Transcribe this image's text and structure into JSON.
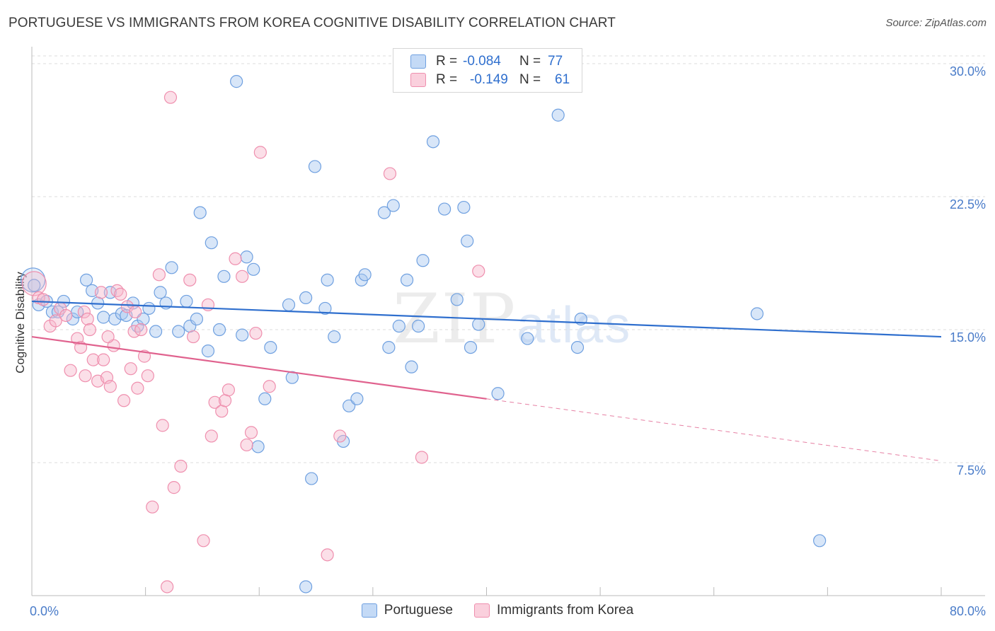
{
  "title": "PORTUGUESE VS IMMIGRANTS FROM KOREA COGNITIVE DISABILITY CORRELATION CHART",
  "source": "Source: ZipAtlas.com",
  "watermark": {
    "main": "ZIP",
    "sub": "atlas"
  },
  "legend": {
    "rows": [
      {
        "r_label": "R =",
        "r_value": "-0.084",
        "n_label": "N =",
        "n_value": "77",
        "color": "#a9c8f0"
      },
      {
        "r_label": "R =",
        "r_value": "-0.149",
        "n_label": "N =",
        "n_value": "61",
        "color": "#f6b8cb"
      }
    ]
  },
  "bottom_legend": [
    {
      "label": "Portuguese",
      "color": "#a9c8f0"
    },
    {
      "label": "Immigrants from Korea",
      "color": "#f6b8cb"
    }
  ],
  "chart_data": {
    "type": "scatter",
    "title": "PORTUGUESE VS IMMIGRANTS FROM KOREA COGNITIVE DISABILITY CORRELATION CHART",
    "xlabel": "",
    "ylabel": "Cognitive Disability",
    "xlim": [
      0,
      80
    ],
    "ylim": [
      0,
      30.8
    ],
    "x_tick_labels": [
      "0.0%",
      "80.0%"
    ],
    "y_ticks": [
      7.5,
      15.0,
      22.5,
      30.0
    ],
    "y_tick_labels": [
      "7.5%",
      "15.0%",
      "22.5%",
      "30.0%"
    ],
    "grid": true,
    "series": [
      {
        "name": "Portuguese",
        "color": "#6fa0e0",
        "trend": {
          "x0": 0,
          "y0": 16.6,
          "x1": 80,
          "y1": 14.6,
          "dashed_from": 80
        },
        "points": [
          [
            0.1,
            17.8
          ],
          [
            0.6,
            16.4
          ],
          [
            1.3,
            16.6
          ],
          [
            1.8,
            16.0
          ],
          [
            2.3,
            16.0
          ],
          [
            2.8,
            16.6
          ],
          [
            3.6,
            15.6
          ],
          [
            4.0,
            16.0
          ],
          [
            4.8,
            17.8
          ],
          [
            5.3,
            17.2
          ],
          [
            5.8,
            16.5
          ],
          [
            6.3,
            15.7
          ],
          [
            6.9,
            17.1
          ],
          [
            7.3,
            15.6
          ],
          [
            7.9,
            15.9
          ],
          [
            8.3,
            15.8
          ],
          [
            8.9,
            16.5
          ],
          [
            9.3,
            15.2
          ],
          [
            9.8,
            15.6
          ],
          [
            10.3,
            16.2
          ],
          [
            10.9,
            14.9
          ],
          [
            11.3,
            17.1
          ],
          [
            11.8,
            16.5
          ],
          [
            12.3,
            18.5
          ],
          [
            12.9,
            14.9
          ],
          [
            13.6,
            16.6
          ],
          [
            13.9,
            15.2
          ],
          [
            14.5,
            15.6
          ],
          [
            14.8,
            21.6
          ],
          [
            15.5,
            13.8
          ],
          [
            15.8,
            19.9
          ],
          [
            16.5,
            15.0
          ],
          [
            16.9,
            18.0
          ],
          [
            18.0,
            29.0
          ],
          [
            18.5,
            14.7
          ],
          [
            18.9,
            19.1
          ],
          [
            19.5,
            18.4
          ],
          [
            19.9,
            8.4
          ],
          [
            20.5,
            11.1
          ],
          [
            21.0,
            14.0
          ],
          [
            22.6,
            16.4
          ],
          [
            22.9,
            12.3
          ],
          [
            24.1,
            16.8
          ],
          [
            24.1,
            0.5
          ],
          [
            24.6,
            6.6
          ],
          [
            24.9,
            24.2
          ],
          [
            25.8,
            16.2
          ],
          [
            26.0,
            17.8
          ],
          [
            26.6,
            14.6
          ],
          [
            27.4,
            8.7
          ],
          [
            27.9,
            10.7
          ],
          [
            28.6,
            11.1
          ],
          [
            29.0,
            17.8
          ],
          [
            29.3,
            18.1
          ],
          [
            31.0,
            21.6
          ],
          [
            31.4,
            14.0
          ],
          [
            31.8,
            22.0
          ],
          [
            32.3,
            15.2
          ],
          [
            33.0,
            17.8
          ],
          [
            33.4,
            12.9
          ],
          [
            34.0,
            15.2
          ],
          [
            34.4,
            18.9
          ],
          [
            35.3,
            25.6
          ],
          [
            36.3,
            21.8
          ],
          [
            37.4,
            16.7
          ],
          [
            38.0,
            21.9
          ],
          [
            38.3,
            20.0
          ],
          [
            38.6,
            14.0
          ],
          [
            39.3,
            15.3
          ],
          [
            41.0,
            11.4
          ],
          [
            43.6,
            14.5
          ],
          [
            46.3,
            27.1
          ],
          [
            48.0,
            14.0
          ],
          [
            48.3,
            15.6
          ],
          [
            63.8,
            15.9
          ],
          [
            69.3,
            3.1
          ],
          [
            0.2,
            17.5
          ]
        ],
        "big_point_index": 0
      },
      {
        "name": "Immigrants from Korea",
        "color": "#ef8fae",
        "trend": {
          "x0": 0,
          "y0": 14.6,
          "x1": 80,
          "y1": 7.6,
          "dashed_from": 40
        },
        "points": [
          [
            0.2,
            17.6
          ],
          [
            0.6,
            16.8
          ],
          [
            1.0,
            16.7
          ],
          [
            1.6,
            15.2
          ],
          [
            2.1,
            15.5
          ],
          [
            2.5,
            16.2
          ],
          [
            3.0,
            15.8
          ],
          [
            3.4,
            12.7
          ],
          [
            4.0,
            14.5
          ],
          [
            4.3,
            14.0
          ],
          [
            4.6,
            16.0
          ],
          [
            4.9,
            15.6
          ],
          [
            5.1,
            15.0
          ],
          [
            5.4,
            13.3
          ],
          [
            5.8,
            12.1
          ],
          [
            6.1,
            17.1
          ],
          [
            6.3,
            13.3
          ],
          [
            6.6,
            12.3
          ],
          [
            6.9,
            11.8
          ],
          [
            7.2,
            14.1
          ],
          [
            7.5,
            17.2
          ],
          [
            7.8,
            17.0
          ],
          [
            8.1,
            11.0
          ],
          [
            8.4,
            16.3
          ],
          [
            8.7,
            12.8
          ],
          [
            9.0,
            14.9
          ],
          [
            9.3,
            11.7
          ],
          [
            9.6,
            15.0
          ],
          [
            9.9,
            13.5
          ],
          [
            10.2,
            12.4
          ],
          [
            10.6,
            5.0
          ],
          [
            11.2,
            18.1
          ],
          [
            11.5,
            9.6
          ],
          [
            11.9,
            0.5
          ],
          [
            12.2,
            28.1
          ],
          [
            12.5,
            6.1
          ],
          [
            13.1,
            7.3
          ],
          [
            13.9,
            17.8
          ],
          [
            14.2,
            14.6
          ],
          [
            15.1,
            3.1
          ],
          [
            15.5,
            16.4
          ],
          [
            15.8,
            9.0
          ],
          [
            16.1,
            10.9
          ],
          [
            16.7,
            10.4
          ],
          [
            17.0,
            11.0
          ],
          [
            17.3,
            11.6
          ],
          [
            17.9,
            19.0
          ],
          [
            18.5,
            18.0
          ],
          [
            18.9,
            8.5
          ],
          [
            19.3,
            9.2
          ],
          [
            19.7,
            14.8
          ],
          [
            20.1,
            25.0
          ],
          [
            20.9,
            11.8
          ],
          [
            26.0,
            2.3
          ],
          [
            27.1,
            9.0
          ],
          [
            31.5,
            23.8
          ],
          [
            34.3,
            7.8
          ],
          [
            39.3,
            18.3
          ],
          [
            4.7,
            12.4
          ],
          [
            6.7,
            14.6
          ],
          [
            9.1,
            16.0
          ]
        ],
        "big_point_index": 0
      }
    ]
  }
}
